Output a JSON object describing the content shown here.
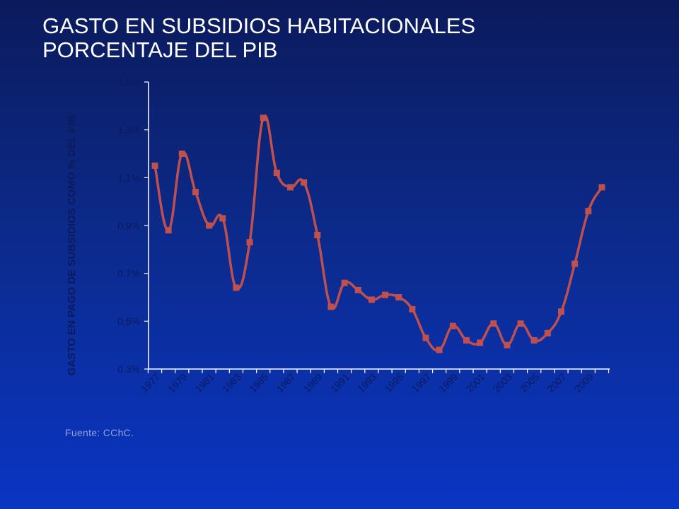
{
  "slide": {
    "title_line1": "GASTO EN SUBSIDIOS HABITACIONALES",
    "title_line2": "PORCENTAJE DEL PIB",
    "source": "Fuente: CChC."
  },
  "colors": {
    "background_top": "#0b1a5c",
    "background_bottom": "#0a35c4",
    "series": "#c0504d",
    "axis": "#ffffff",
    "tick_label": "#0b1a5c"
  },
  "chart_data": {
    "type": "line",
    "title": "",
    "xlabel": "",
    "ylabel": "GASTO EN PAGO DE SUBSIDIOS COMO % DEL PIB",
    "ylim": [
      0.3,
      1.5
    ],
    "yticks": [
      0.3,
      0.5,
      0.7,
      0.9,
      1.1,
      1.3,
      1.5
    ],
    "ytick_labels": [
      "0,3%",
      "0,5%",
      "0,7%",
      "0,9%",
      "1,1%",
      "1,3%",
      "1,5%"
    ],
    "xtick_labels": [
      "1977",
      "1979",
      "1981",
      "1983",
      "1985",
      "1987",
      "1989",
      "1991",
      "1993",
      "1995",
      "1997",
      "1999",
      "2001",
      "2003",
      "2005",
      "2007",
      "2009"
    ],
    "x": [
      1977,
      1978,
      1979,
      1980,
      1981,
      1982,
      1983,
      1984,
      1985,
      1986,
      1987,
      1988,
      1989,
      1990,
      1991,
      1992,
      1993,
      1994,
      1995,
      1996,
      1997,
      1998,
      1999,
      2000,
      2001,
      2002,
      2003,
      2004,
      2005,
      2006,
      2007,
      2008,
      2009,
      2010
    ],
    "series": [
      {
        "name": "",
        "values": [
          1.15,
          0.88,
          1.2,
          1.04,
          0.9,
          0.93,
          0.64,
          0.83,
          1.35,
          1.12,
          1.06,
          1.08,
          0.86,
          0.56,
          0.66,
          0.63,
          0.59,
          0.61,
          0.6,
          0.55,
          0.43,
          0.38,
          0.48,
          0.42,
          0.41,
          0.49,
          0.4,
          0.49,
          0.42,
          0.45,
          0.54,
          0.74,
          0.96,
          1.06
        ]
      }
    ],
    "grid": false,
    "legend": "none"
  }
}
